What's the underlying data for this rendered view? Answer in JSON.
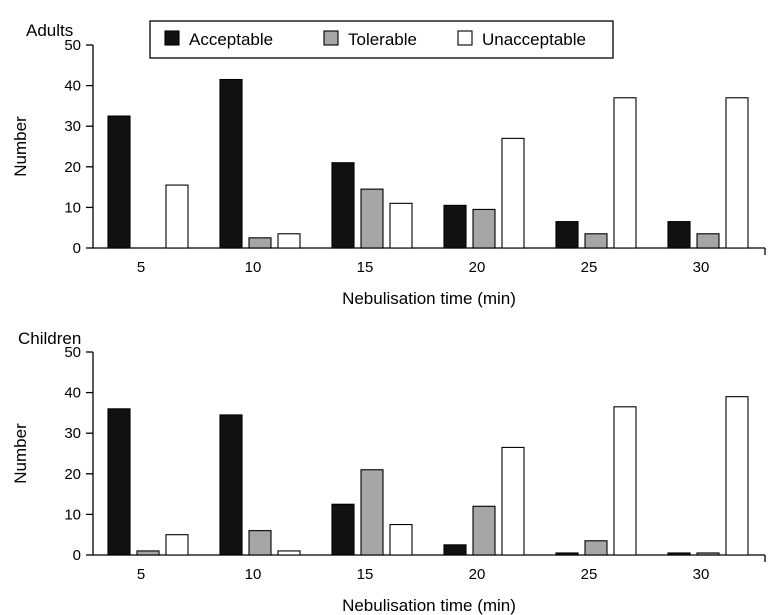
{
  "legend": {
    "items": [
      {
        "label": "Acceptable",
        "color": "#111111"
      },
      {
        "label": "Tolerable",
        "color": "#a6a6a6"
      },
      {
        "label": "Unacceptable",
        "color": "#ffffff"
      }
    ]
  },
  "chart_data": [
    {
      "type": "bar",
      "title": "Adults",
      "xlabel": "Nebulisation time (min)",
      "ylabel": "Number",
      "ylim": [
        0,
        50
      ],
      "yticks": [
        0,
        10,
        20,
        30,
        40,
        50
      ],
      "grid": false,
      "legend_position": "top",
      "categories": [
        "5",
        "10",
        "15",
        "20",
        "25",
        "30"
      ],
      "series": [
        {
          "name": "Acceptable",
          "color": "#111111",
          "values": [
            32.5,
            41.5,
            21,
            10.5,
            6.5,
            6.5
          ]
        },
        {
          "name": "Tolerable",
          "color": "#a6a6a6",
          "values": [
            0,
            2.5,
            14.5,
            9.5,
            3.5,
            3.5
          ]
        },
        {
          "name": "Unacceptable",
          "color": "#ffffff",
          "values": [
            15.5,
            3.5,
            11,
            27,
            37,
            37
          ]
        }
      ]
    },
    {
      "type": "bar",
      "title": "Children",
      "xlabel": "Nebulisation time (min)",
      "ylabel": "Number",
      "ylim": [
        0,
        50
      ],
      "yticks": [
        0,
        10,
        20,
        30,
        40,
        50
      ],
      "grid": false,
      "categories": [
        "5",
        "10",
        "15",
        "20",
        "25",
        "30"
      ],
      "series": [
        {
          "name": "Acceptable",
          "color": "#111111",
          "values": [
            36,
            34.5,
            12.5,
            2.5,
            0.5,
            0.5
          ]
        },
        {
          "name": "Tolerable",
          "color": "#a6a6a6",
          "values": [
            1,
            6,
            21,
            12,
            3.5,
            0.5
          ]
        },
        {
          "name": "Unacceptable",
          "color": "#ffffff",
          "values": [
            5,
            1,
            7.5,
            26.5,
            36.5,
            39
          ]
        }
      ]
    }
  ]
}
